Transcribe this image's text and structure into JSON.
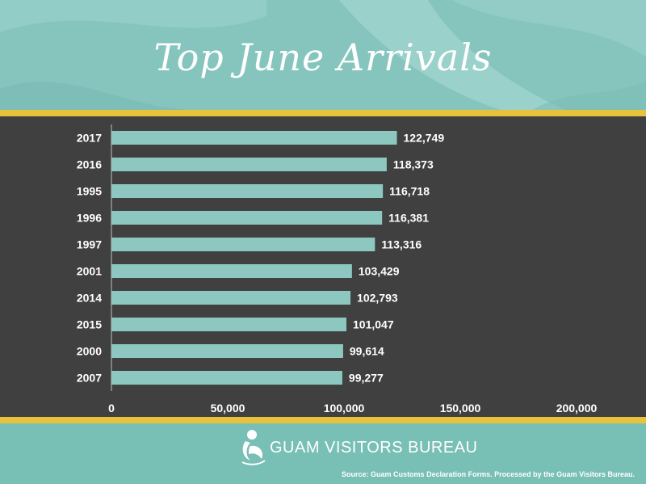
{
  "slide": {
    "title": "Top June Arrivals",
    "org_name": "GUAM VISITORS BUREAU",
    "source": "Source: Guam Customs Declaration Forms. Processed by the Guam Visitors Bureau."
  },
  "colors": {
    "header_teal": "#86c5be",
    "gold_band": "#e8c23d",
    "chart_background": "#404041",
    "bar_fill": "#8cc8bf",
    "text": "#ffffff"
  },
  "icons": {
    "logo": "guam-visitors-bureau-logo-icon"
  },
  "chart_data": {
    "type": "bar",
    "orientation": "horizontal",
    "title": "Top June Arrivals",
    "categories": [
      "2017",
      "2016",
      "1995",
      "1996",
      "1997",
      "2001",
      "2014",
      "2015",
      "2000",
      "2007"
    ],
    "values": [
      122749,
      118373,
      116718,
      116381,
      113316,
      103429,
      102793,
      101047,
      99614,
      99277
    ],
    "value_labels": [
      "122,749",
      "118,373",
      "116,718",
      "116,381",
      "113,316",
      "103,429",
      "102,793",
      "101,047",
      "99,614",
      "99,277"
    ],
    "xlim": [
      0,
      200000
    ],
    "x_ticks": [
      0,
      50000,
      100000,
      150000,
      200000
    ],
    "x_tick_labels": [
      "0",
      "50,000",
      "100,000",
      "150,000",
      "200,000"
    ],
    "grid": false,
    "legend": "none"
  }
}
